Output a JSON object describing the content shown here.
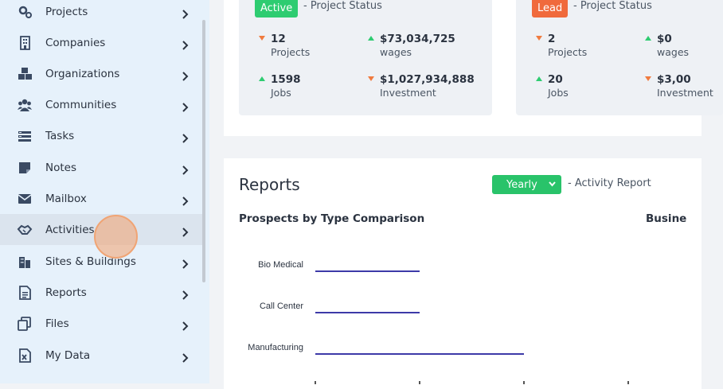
{
  "sidebar": {
    "items": [
      {
        "label": "Projects",
        "icon": "gears-icon"
      },
      {
        "label": "Companies",
        "icon": "building-icon"
      },
      {
        "label": "Organizations",
        "icon": "cubes-icon"
      },
      {
        "label": "Communities",
        "icon": "users-icon"
      },
      {
        "label": "Tasks",
        "icon": "tasks-icon"
      },
      {
        "label": "Notes",
        "icon": "note-icon"
      },
      {
        "label": "Mailbox",
        "icon": "envelope-icon"
      },
      {
        "label": "Activities",
        "icon": "handshake-icon"
      },
      {
        "label": "Sites & Buildings",
        "icon": "city-icon"
      },
      {
        "label": "Reports",
        "icon": "report-icon"
      },
      {
        "label": "Files",
        "icon": "copy-icon"
      },
      {
        "label": "My Data",
        "icon": "excel-icon"
      }
    ],
    "active_item": "Activities"
  },
  "status_cards": [
    {
      "badge": "Active",
      "badge_color": "#2ecc71",
      "title": "- Project Status",
      "stats": [
        {
          "value": "12",
          "label": "Projects",
          "trend": "down"
        },
        {
          "value": "$73,034,725",
          "label": "wages",
          "trend": "up"
        },
        {
          "value": "1598",
          "label": "Jobs",
          "trend": "up"
        },
        {
          "value": "$1,027,934,888",
          "label": "Investment",
          "trend": "down"
        }
      ]
    },
    {
      "badge": "Lead",
      "badge_color": "#f06a3c",
      "title": "- Project Status",
      "stats": [
        {
          "value": "2",
          "label": "Projects",
          "trend": "down"
        },
        {
          "value": "$0",
          "label": "wages",
          "trend": "up"
        },
        {
          "value": "20",
          "label": "Jobs",
          "trend": "up"
        },
        {
          "value": "$3,00",
          "label": "Investment",
          "trend": "down"
        }
      ]
    }
  ],
  "reports": {
    "title": "Reports",
    "period_select": "Yearly",
    "period_label": "- Activity Report",
    "chart_title": "Prospects by Type Comparison",
    "chart_title_2": "Busine"
  },
  "colors": {
    "up": "#2ecc71",
    "down": "#f07b3f",
    "bar": "#3d3aa8",
    "select": "#29c36a"
  },
  "chart_data": {
    "type": "bar",
    "orientation": "horizontal",
    "categories": [
      "Bio Medical",
      "Call Center",
      "Manufacturing"
    ],
    "values": [
      1,
      1,
      2
    ],
    "xlim": [
      0,
      3
    ]
  }
}
